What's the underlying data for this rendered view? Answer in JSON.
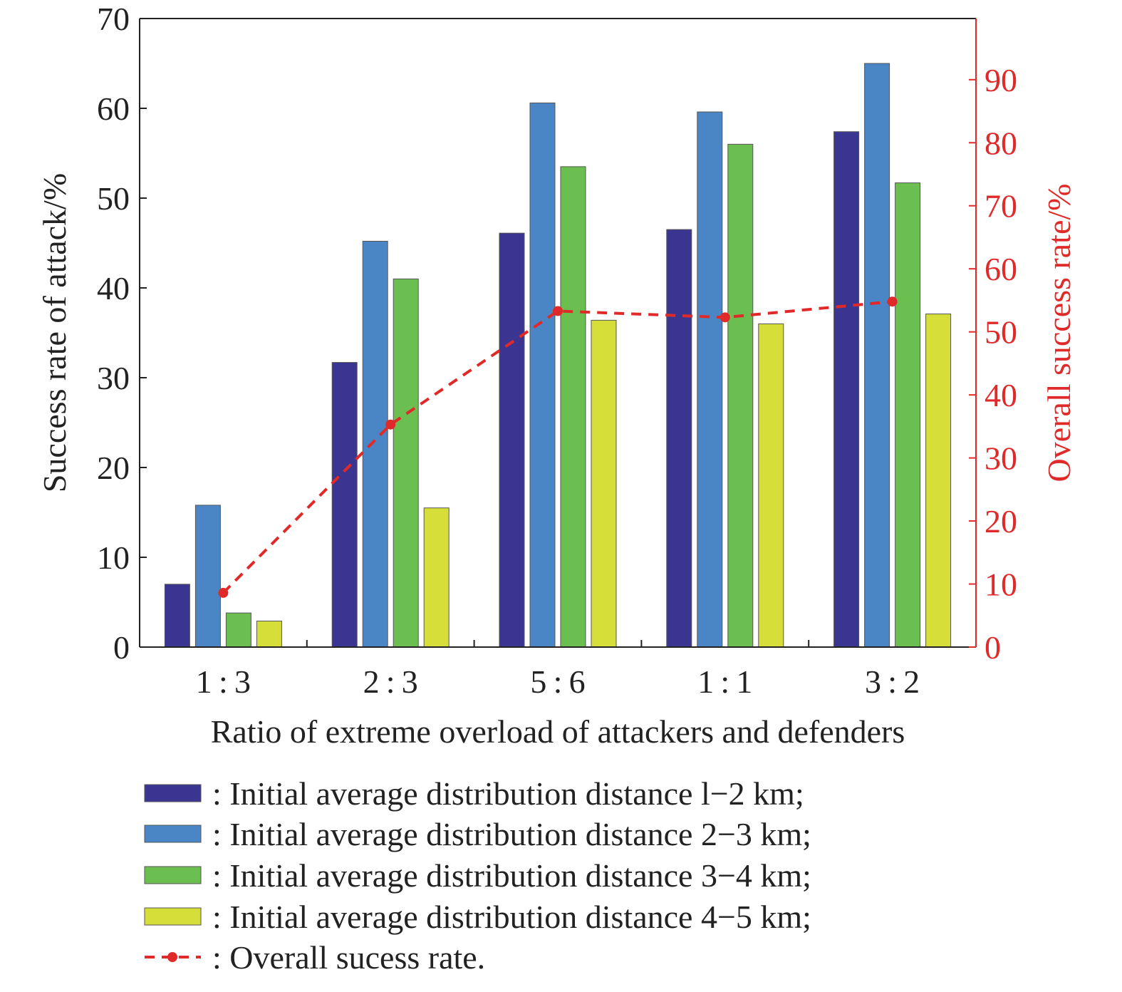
{
  "chart_data": {
    "type": "bar",
    "categories": [
      "1 : 3",
      "2 : 3",
      "5 : 6",
      "1 : 1",
      "3 : 2"
    ],
    "xlabel": "Ratio of extreme overload of attackers and defenders",
    "ylabel": "Success rate of attack/%",
    "ylabel_right": "Overall success rate/%",
    "ylim": [
      0,
      70
    ],
    "ylim_right": [
      0,
      99.7
    ],
    "yticks": [
      0,
      10,
      20,
      30,
      40,
      50,
      60,
      70
    ],
    "yticks_right": [
      0,
      10,
      20,
      30,
      40,
      50,
      60,
      70,
      80,
      90
    ],
    "grid": false,
    "legend_position": "bottom",
    "series": [
      {
        "name": ": Initial average distribution distance l−2 km;",
        "color": "#3b3592",
        "axis": "left",
        "kind": "bar",
        "values": [
          7.0,
          31.7,
          46.1,
          46.5,
          57.4
        ]
      },
      {
        "name": ": Initial average distribution distance 2−3 km;",
        "color": "#4a86c5",
        "axis": "left",
        "kind": "bar",
        "values": [
          15.8,
          45.2,
          60.6,
          59.6,
          65.0
        ]
      },
      {
        "name": ": Initial average distribution distance 3−4 km;",
        "color": "#6bbf50",
        "axis": "left",
        "kind": "bar",
        "values": [
          3.8,
          41.0,
          53.5,
          56.0,
          51.7
        ]
      },
      {
        "name": ": Initial average distribution distance 4−5 km;",
        "color": "#d6de3a",
        "axis": "left",
        "kind": "bar",
        "values": [
          2.9,
          15.5,
          36.4,
          36.0,
          37.1
        ]
      },
      {
        "name": ": Overall sucess rate.",
        "color": "#e02a2a",
        "axis": "right",
        "kind": "line",
        "values": [
          8.6,
          35.3,
          53.3,
          52.3,
          54.8
        ]
      }
    ]
  }
}
